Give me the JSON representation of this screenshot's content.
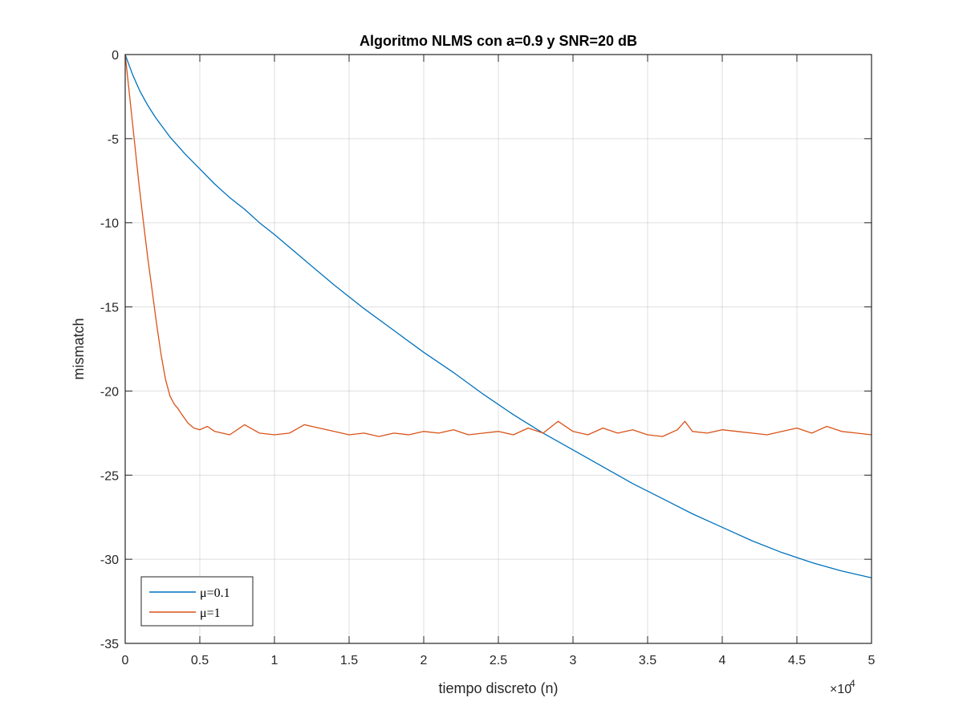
{
  "chart_data": {
    "type": "line",
    "title": "Algoritmo NLMS con a=0.9 y SNR=20 dB",
    "xlabel": "tiempo discreto (n)",
    "ylabel": "mismatch",
    "x_exponent_label": "×10",
    "x_exponent_power": "4",
    "xlim": [
      0,
      50000
    ],
    "ylim": [
      -35,
      0
    ],
    "x_ticks": [
      0,
      5000,
      10000,
      15000,
      20000,
      25000,
      30000,
      35000,
      40000,
      45000,
      50000
    ],
    "x_tick_labels": [
      "0",
      "0.5",
      "1",
      "1.5",
      "2",
      "2.5",
      "3",
      "3.5",
      "4",
      "4.5",
      "5"
    ],
    "y_ticks": [
      0,
      -5,
      -10,
      -15,
      -20,
      -25,
      -30,
      -35
    ],
    "y_tick_labels": [
      "0",
      "-5",
      "-10",
      "-15",
      "-20",
      "-25",
      "-30",
      "-35"
    ],
    "grid": true,
    "legend_position": "bottom-left",
    "series": [
      {
        "name": "μ=0.1",
        "color": "#0072BD",
        "x": [
          0,
          500,
          1000,
          1500,
          2000,
          2500,
          3000,
          3500,
          4000,
          5000,
          6000,
          7000,
          8000,
          9000,
          10000,
          12000,
          14000,
          16000,
          18000,
          20000,
          22000,
          24000,
          26000,
          28000,
          30000,
          32000,
          34000,
          36000,
          38000,
          40000,
          42000,
          44000,
          46000,
          48000,
          50000
        ],
        "values": [
          0,
          -1.2,
          -2.2,
          -3.0,
          -3.7,
          -4.3,
          -4.9,
          -5.4,
          -5.9,
          -6.8,
          -7.7,
          -8.5,
          -9.2,
          -10.0,
          -10.7,
          -12.2,
          -13.7,
          -15.1,
          -16.4,
          -17.7,
          -18.9,
          -20.2,
          -21.4,
          -22.5,
          -23.5,
          -24.5,
          -25.5,
          -26.4,
          -27.3,
          -28.1,
          -28.9,
          -29.6,
          -30.2,
          -30.7,
          -31.1
        ]
      },
      {
        "name": "μ=1",
        "color": "#D95319",
        "x": [
          0,
          300,
          600,
          900,
          1200,
          1500,
          1800,
          2100,
          2400,
          2700,
          3000,
          3300,
          3500,
          3800,
          4200,
          4600,
          5000,
          5500,
          6000,
          7000,
          8000,
          9000,
          10000,
          11000,
          12000,
          13000,
          14000,
          15000,
          16000,
          17000,
          18000,
          19000,
          20000,
          21000,
          22000,
          23000,
          24000,
          25000,
          26000,
          27000,
          28000,
          29000,
          30000,
          31000,
          32000,
          33000,
          34000,
          35000,
          36000,
          37000,
          37500,
          38000,
          39000,
          40000,
          41000,
          42000,
          43000,
          44000,
          45000,
          46000,
          47000,
          48000,
          49000,
          50000
        ],
        "values": [
          0,
          -2.5,
          -5.0,
          -7.5,
          -9.8,
          -12.0,
          -14.0,
          -16.0,
          -17.8,
          -19.3,
          -20.3,
          -20.8,
          -21.0,
          -21.4,
          -21.9,
          -22.2,
          -22.3,
          -22.1,
          -22.4,
          -22.6,
          -22.0,
          -22.5,
          -22.6,
          -22.5,
          -22.0,
          -22.2,
          -22.4,
          -22.6,
          -22.5,
          -22.7,
          -22.5,
          -22.6,
          -22.4,
          -22.5,
          -22.3,
          -22.6,
          -22.5,
          -22.4,
          -22.6,
          -22.2,
          -22.5,
          -21.8,
          -22.4,
          -22.6,
          -22.2,
          -22.5,
          -22.3,
          -22.6,
          -22.7,
          -22.3,
          -21.8,
          -22.4,
          -22.5,
          -22.3,
          -22.4,
          -22.5,
          -22.6,
          -22.4,
          -22.2,
          -22.5,
          -22.1,
          -22.4,
          -22.5,
          -22.6
        ]
      }
    ]
  }
}
